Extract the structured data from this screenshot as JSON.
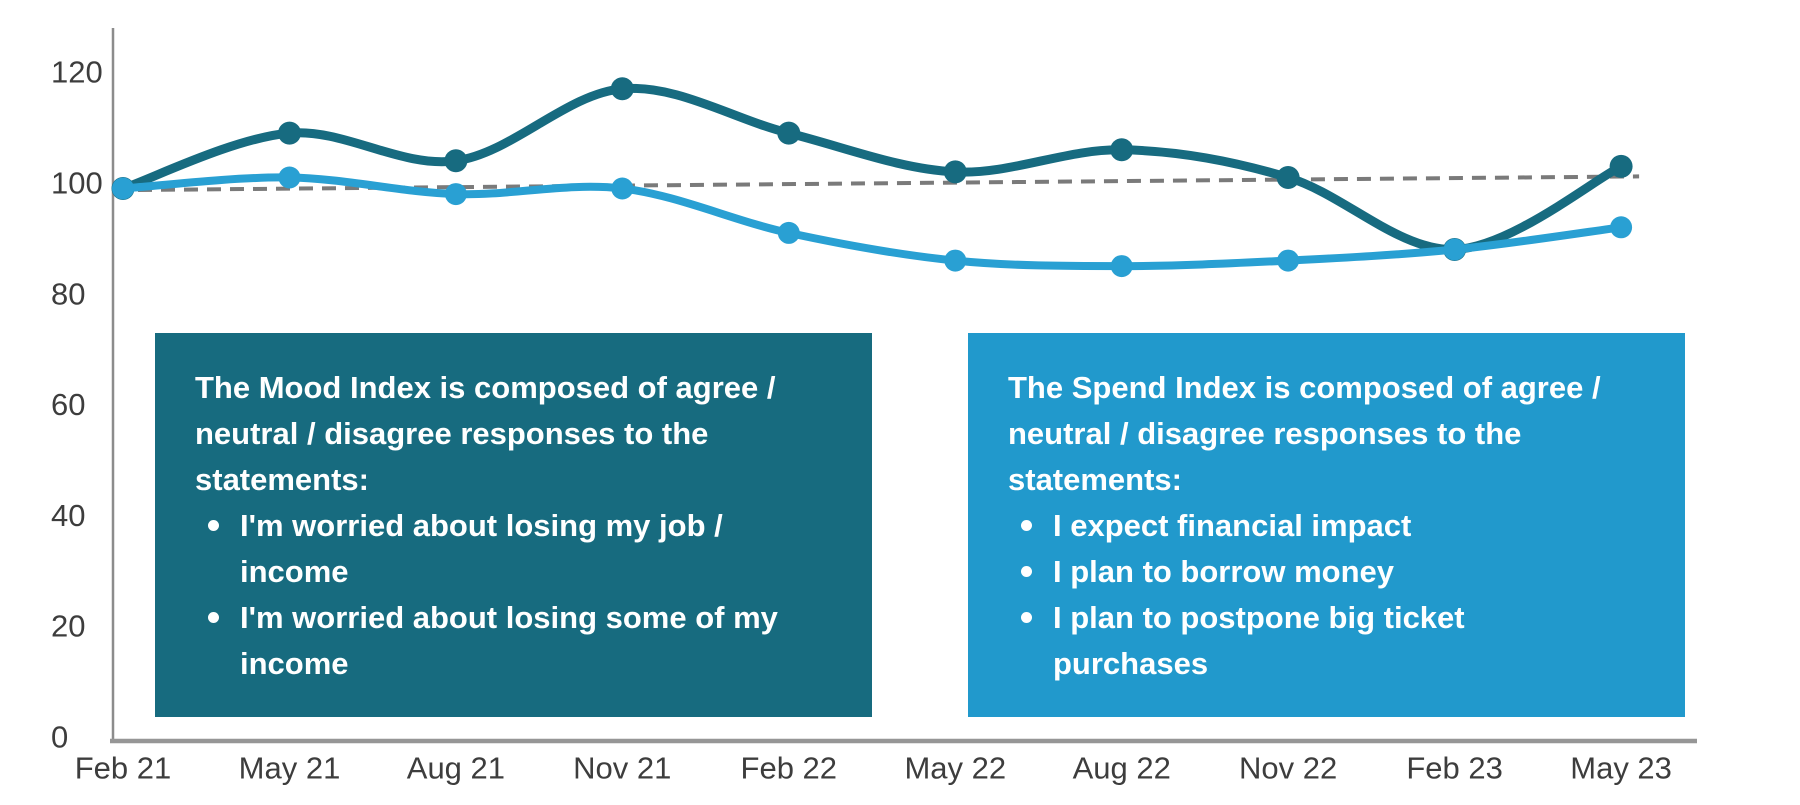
{
  "chart_data": {
    "type": "line",
    "title": "",
    "xlabel": "",
    "ylabel": "",
    "categories": [
      "Feb 21",
      "May 21",
      "Aug 21",
      "Nov 21",
      "Feb 22",
      "May 22",
      "Aug 22",
      "Nov 22",
      "Feb 23",
      "May 23"
    ],
    "series": [
      {
        "name": "Mood Index",
        "color": "#176B80",
        "stroke_width": 9,
        "marker_radius": 11.5,
        "values": [
          99,
          109,
          104,
          117,
          109,
          102,
          106,
          101,
          88,
          103
        ]
      },
      {
        "name": "Spend Index",
        "color": "#29A0D3",
        "stroke_width": 8,
        "marker_radius": 11,
        "values": [
          99,
          101,
          98,
          99,
          91,
          86,
          85,
          86,
          88,
          92
        ]
      }
    ],
    "trendline": {
      "style": "dashed",
      "color": "#7A7A7A",
      "start_value": 98.7,
      "end_value": 101.2
    },
    "yticks": [
      0,
      20,
      40,
      60,
      80,
      100,
      120
    ],
    "ylim": [
      0,
      120
    ],
    "grid": false,
    "legend": "none",
    "axis_color": "#969696",
    "tick_text_color": "#3d3d3d"
  },
  "annotations": {
    "mood_box": {
      "background": "#176B7F",
      "title": "The Mood Index is composed of agree / neutral / disagree responses to the statements:",
      "bullets": [
        "I'm worried about losing my job / income",
        "I'm worried about losing some of my income"
      ]
    },
    "spend_box": {
      "background": "#2199CC",
      "title": "The Spend Index is composed of agree / neutral / disagree responses to the statements:",
      "bullets": [
        "I expect financial impact",
        "I plan to borrow money",
        "I plan to postpone big ticket purchases"
      ]
    }
  }
}
